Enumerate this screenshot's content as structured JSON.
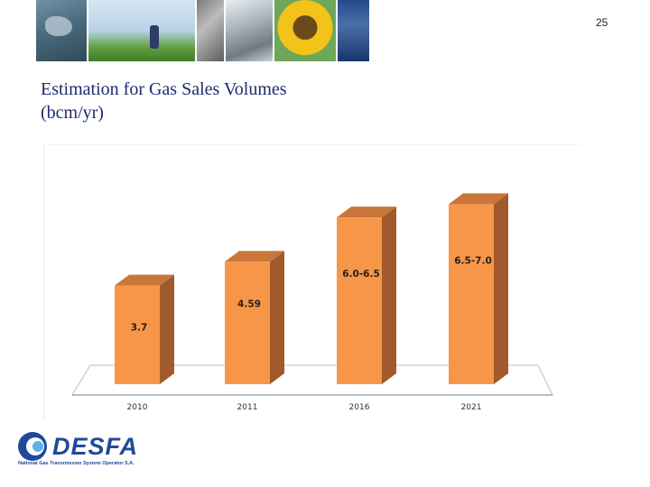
{
  "page_number": "25",
  "title_line1": "Estimation for Gas Sales Volumes",
  "title_line2": "(bcm/yr)",
  "brand": {
    "name": "DESFA",
    "tagline": "National Gas Transmission System Operator S.A.",
    "color": "#1f4a9a"
  },
  "chart_data": {
    "type": "bar",
    "style": "3d-column",
    "categories": [
      "2010",
      "2011",
      "2016",
      "2021"
    ],
    "values": [
      3.7,
      4.59,
      6.25,
      6.75
    ],
    "data_labels": [
      "3.7",
      "4.59",
      "6.0-6.5",
      "6.5-7.0"
    ],
    "ylim": [
      0,
      7
    ],
    "grid": false,
    "legend": "none",
    "colors": {
      "bar_front": "#f79646",
      "bar_side": "#a05a2c",
      "bar_top": "#c8763a",
      "floor": "#ffffff",
      "floor_edge": "#bfbfbf",
      "label": "#222222"
    }
  }
}
